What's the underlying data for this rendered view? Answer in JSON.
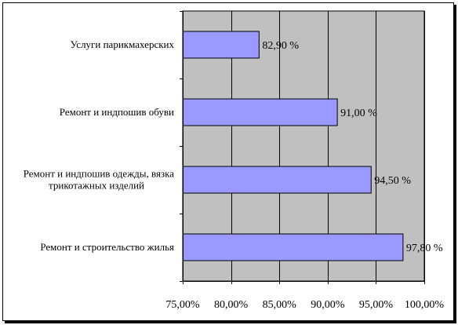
{
  "chart_data": {
    "type": "bar",
    "orientation": "horizontal",
    "categories": [
      "Услуги парикмахерских",
      "Ремонт и индпошив обуви",
      "Ремонт и индпошив одежды, вязка трикотажных изделий",
      "Ремонт и строительство жилья"
    ],
    "category_lines": [
      [
        "Услуги парикмахерских"
      ],
      [
        "Ремонт и индпошив обуви"
      ],
      [
        "Ремонт и индпошив одежды, вязка",
        "трикотажных изделий"
      ],
      [
        "Ремонт и строительство жилья"
      ]
    ],
    "values": [
      82.9,
      91.0,
      94.5,
      97.8
    ],
    "data_labels": [
      "82,90 %",
      "91,00 %",
      "94,50 %",
      "97,80 %"
    ],
    "xlim": [
      75,
      100
    ],
    "x_ticks": [
      75,
      80,
      85,
      90,
      95,
      100
    ],
    "x_tick_labels": [
      "75,00%",
      "80,00%",
      "85,00%",
      "90,00%",
      "95,00%",
      "100,00%"
    ],
    "grid": true,
    "colors": {
      "bar_fill": "#9999ff",
      "bar_stroke": "#000000",
      "plot_background": "#c0c0c0",
      "grid": "#000000"
    }
  }
}
